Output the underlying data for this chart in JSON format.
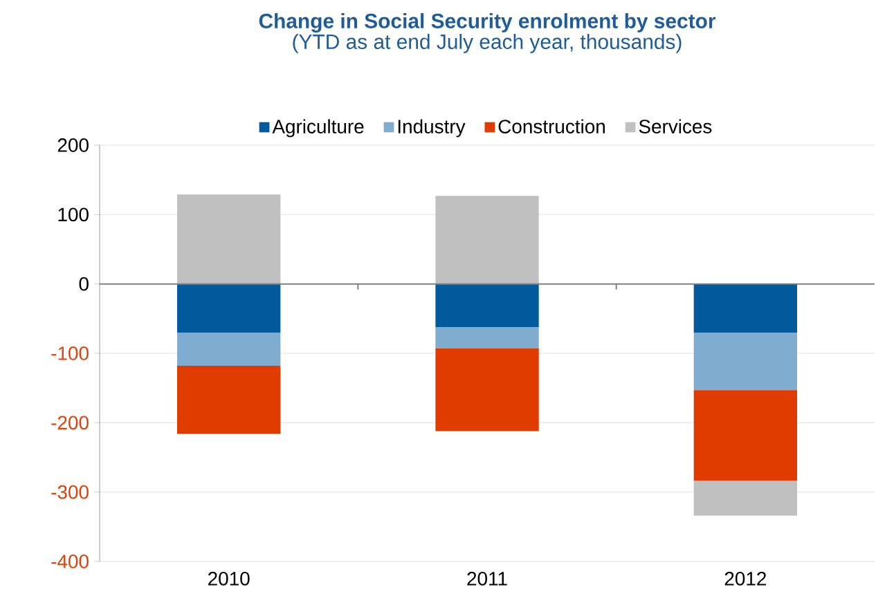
{
  "chart_data": {
    "type": "bar",
    "stacked": true,
    "title": "Change in Social Security enrolment by sector",
    "subtitle": "(YTD as at end July each year, thousands)",
    "categories": [
      "2010",
      "2011",
      "2012"
    ],
    "series": [
      {
        "name": "Agriculture",
        "color": "#005a9c",
        "values": [
          -70,
          -62,
          -70
        ]
      },
      {
        "name": "Industry",
        "color": "#80acd0",
        "values": [
          -48,
          -31,
          -83
        ]
      },
      {
        "name": "Construction",
        "color": "#e03c00",
        "values": [
          -98,
          -119,
          -131
        ]
      },
      {
        "name": "Services",
        "color": "#c0c0c0",
        "values": [
          129,
          127,
          -50
        ]
      }
    ],
    "ylim": [
      -400,
      200
    ],
    "yticks": [
      -400,
      -300,
      -200,
      -100,
      0,
      100,
      200
    ],
    "grid": "y",
    "legend": "top"
  }
}
